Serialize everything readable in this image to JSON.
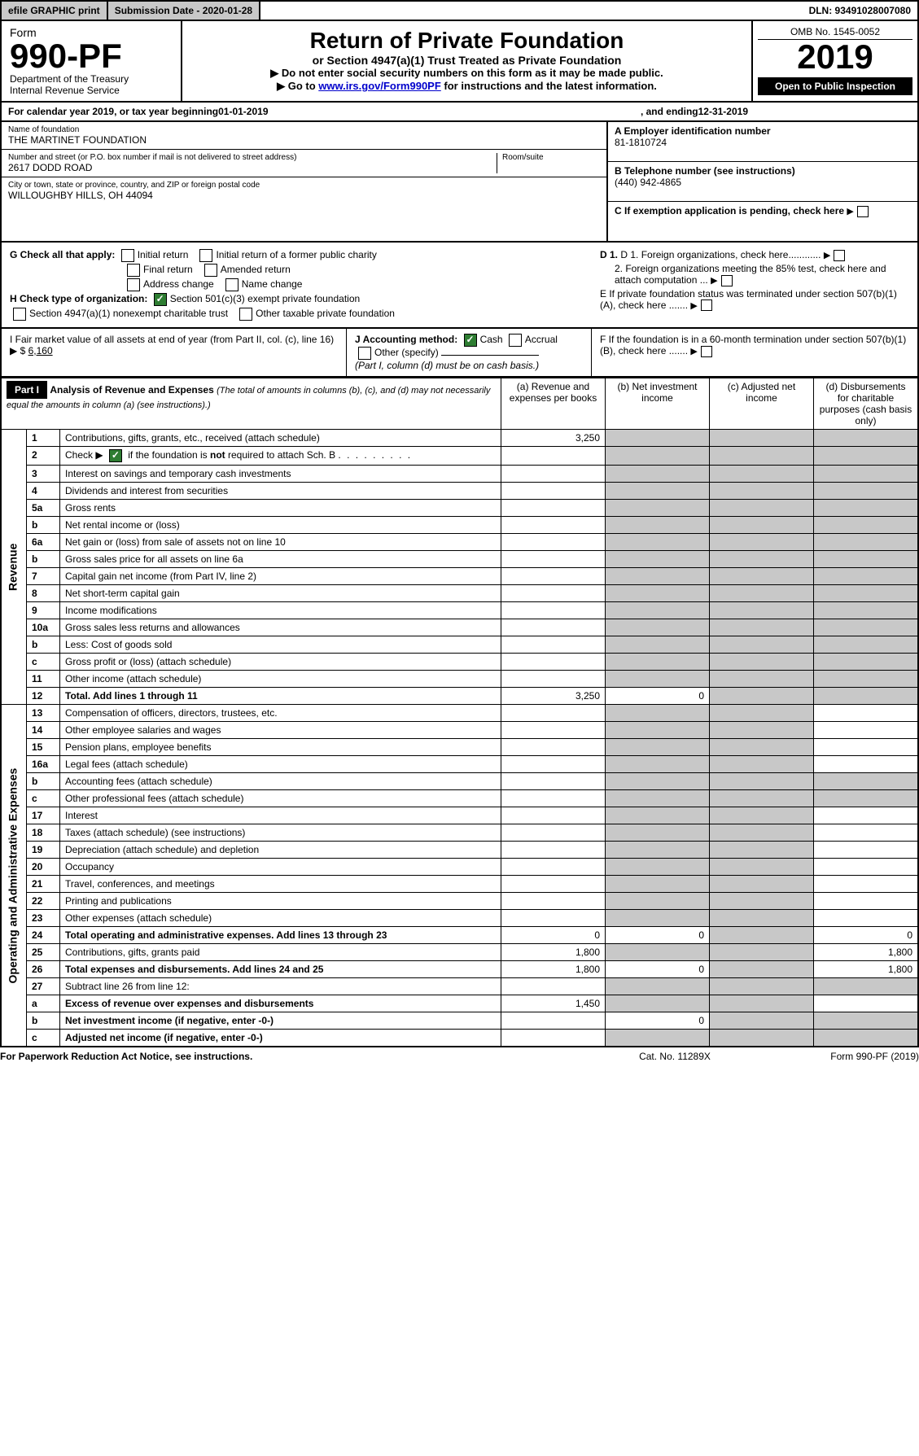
{
  "topbar": {
    "efile": "efile GRAPHIC print",
    "sub": "Submission Date - 2020-01-28",
    "dln": "DLN: 93491028007080"
  },
  "header": {
    "form": "Form",
    "num": "990-PF",
    "dept": "Department of the Treasury\nInternal Revenue Service",
    "title": "Return of Private Foundation",
    "sub1": "or Section 4947(a)(1) Trust Treated as Private Foundation",
    "sub2": "▶ Do not enter social security numbers on this form as it may be made public.",
    "sub3": "▶ Go to www.irs.gov/Form990PF for instructions and the latest information.",
    "link": "www.irs.gov/Form990PF",
    "omb": "OMB No. 1545-0052",
    "year": "2019",
    "open": "Open to Public Inspection"
  },
  "calendar": {
    "prefix": "For calendar year 2019, or tax year beginning ",
    "begin": "01-01-2019",
    "mid": ", and ending ",
    "end": "12-31-2019"
  },
  "id": {
    "name_lbl": "Name of foundation",
    "name": "THE MARTINET FOUNDATION",
    "addr_lbl": "Number and street (or P.O. box number if mail is not delivered to street address)",
    "room_lbl": "Room/suite",
    "addr": "2617 DODD ROAD",
    "city_lbl": "City or town, state or province, country, and ZIP or foreign postal code",
    "city": "WILLOUGHBY HILLS, OH  44094",
    "ein_lbl": "A Employer identification number",
    "ein": "81-1810724",
    "tel_lbl": "B Telephone number (see instructions)",
    "tel": "(440) 942-4865",
    "c": "C If exemption application is pending, check here"
  },
  "G": {
    "label": "G Check all that apply:",
    "opts": [
      "Initial return",
      "Initial return of a former public charity",
      "Final return",
      "Amended return",
      "Address change",
      "Name change"
    ],
    "d1": "D 1. Foreign organizations, check here............",
    "d2": "2. Foreign organizations meeting the 85% test, check here and attach computation ...",
    "e": "E  If private foundation status was terminated under section 507(b)(1)(A), check here ......."
  },
  "H": {
    "label": "H Check type of organization:",
    "opts": [
      "Section 501(c)(3) exempt private foundation",
      "Section 4947(a)(1) nonexempt charitable trust",
      "Other taxable private foundation"
    ]
  },
  "IJ": {
    "i": "I Fair market value of all assets at end of year (from Part II, col. (c), line 16) ▶ $",
    "ival": "6,160",
    "j": "J Accounting method:",
    "cash": "Cash",
    "accrual": "Accrual",
    "other": "Other (specify)",
    "note": "(Part I, column (d) must be on cash basis.)",
    "f": "F  If the foundation is in a 60-month termination under section 507(b)(1)(B), check here ......."
  },
  "part1": {
    "label": "Part I",
    "title": "Analysis of Revenue and Expenses",
    "note": "(The total of amounts in columns (b), (c), and (d) may not necessarily equal the amounts in column (a) (see instructions).)",
    "cols": {
      "a": "(a)   Revenue and expenses per books",
      "b": "(b)  Net investment income",
      "c": "(c)  Adjusted net income",
      "d": "(d)  Disbursements for charitable purposes (cash basis only)"
    }
  },
  "rows": [
    {
      "n": "1",
      "d": "Contributions, gifts, grants, etc., received (attach schedule)",
      "a": "3,250"
    },
    {
      "n": "2",
      "d": "Check ▶    if the foundation is not required to attach Sch. B",
      "checked": true
    },
    {
      "n": "3",
      "d": "Interest on savings and temporary cash investments"
    },
    {
      "n": "4",
      "d": "Dividends and interest from securities"
    },
    {
      "n": "5a",
      "d": "Gross rents"
    },
    {
      "n": "b",
      "d": "Net rental income or (loss)"
    },
    {
      "n": "6a",
      "d": "Net gain or (loss) from sale of assets not on line 10"
    },
    {
      "n": "b",
      "d": "Gross sales price for all assets on line 6a"
    },
    {
      "n": "7",
      "d": "Capital gain net income (from Part IV, line 2)"
    },
    {
      "n": "8",
      "d": "Net short-term capital gain"
    },
    {
      "n": "9",
      "d": "Income modifications"
    },
    {
      "n": "10a",
      "d": "Gross sales less returns and allowances"
    },
    {
      "n": "b",
      "d": "Less: Cost of goods sold"
    },
    {
      "n": "c",
      "d": "Gross profit or (loss) (attach schedule)"
    },
    {
      "n": "11",
      "d": "Other income (attach schedule)"
    },
    {
      "n": "12",
      "d": "Total. Add lines 1 through 11",
      "bold": true,
      "a": "3,250",
      "b": "0"
    }
  ],
  "expRows": [
    {
      "n": "13",
      "d": "Compensation of officers, directors, trustees, etc."
    },
    {
      "n": "14",
      "d": "Other employee salaries and wages"
    },
    {
      "n": "15",
      "d": "Pension plans, employee benefits"
    },
    {
      "n": "16a",
      "d": "Legal fees (attach schedule)"
    },
    {
      "n": "b",
      "d": "Accounting fees (attach schedule)"
    },
    {
      "n": "c",
      "d": "Other professional fees (attach schedule)"
    },
    {
      "n": "17",
      "d": "Interest"
    },
    {
      "n": "18",
      "d": "Taxes (attach schedule) (see instructions)"
    },
    {
      "n": "19",
      "d": "Depreciation (attach schedule) and depletion"
    },
    {
      "n": "20",
      "d": "Occupancy"
    },
    {
      "n": "21",
      "d": "Travel, conferences, and meetings"
    },
    {
      "n": "22",
      "d": "Printing and publications"
    },
    {
      "n": "23",
      "d": "Other expenses (attach schedule)"
    },
    {
      "n": "24",
      "d": "Total operating and administrative expenses. Add lines 13 through 23",
      "bold": true,
      "a": "0",
      "b": "0",
      "dd": "0"
    },
    {
      "n": "25",
      "d": "Contributions, gifts, grants paid",
      "a": "1,800",
      "dd": "1,800"
    },
    {
      "n": "26",
      "d": "Total expenses and disbursements. Add lines 24 and 25",
      "bold": true,
      "a": "1,800",
      "b": "0",
      "dd": "1,800"
    },
    {
      "n": "27",
      "d": "Subtract line 26 from line 12:"
    },
    {
      "n": "a",
      "d": "Excess of revenue over expenses and disbursements",
      "bold": true,
      "a": "1,450"
    },
    {
      "n": "b",
      "d": "Net investment income (if negative, enter -0-)",
      "bold": true,
      "b": "0"
    },
    {
      "n": "c",
      "d": "Adjusted net income (if negative, enter -0-)",
      "bold": true
    }
  ],
  "side": {
    "rev": "Revenue",
    "exp": "Operating and Administrative Expenses"
  },
  "footer": {
    "left": "For Paperwork Reduction Act Notice, see instructions.",
    "mid": "Cat. No. 11289X",
    "right": "Form 990-PF (2019)"
  }
}
